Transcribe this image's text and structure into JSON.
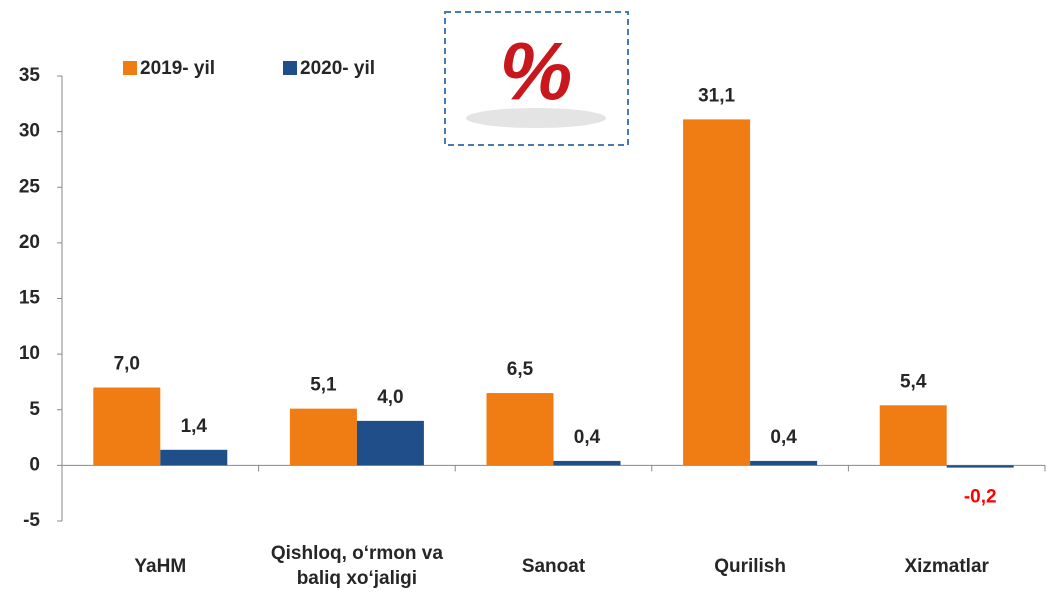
{
  "chart_data": {
    "type": "bar",
    "badge": "%",
    "categories": [
      "YaHM",
      "Qishloq, o‘rmon va baliq xo‘jaligi",
      "Sanoat",
      "Qurilish",
      "Xizmatlar"
    ],
    "series": [
      {
        "name": "2019- yil",
        "color": "#f07c14",
        "values": [
          7.0,
          5.1,
          6.5,
          31.1,
          5.4
        ],
        "value_labels": [
          "7,0",
          "5,1",
          "6,5",
          "31,1",
          "5,4"
        ]
      },
      {
        "name": "2020- yil",
        "color": "#1f4e89",
        "values": [
          1.4,
          4.0,
          0.4,
          0.4,
          -0.2
        ],
        "value_labels": [
          "1,4",
          "4,0",
          "0,4",
          "0,4",
          "-0,2"
        ]
      }
    ],
    "negative_label_color": "#ff0000",
    "ylim": [
      -5,
      35
    ],
    "yticks": [
      -5,
      0,
      5,
      10,
      15,
      20,
      25,
      30,
      35
    ]
  }
}
